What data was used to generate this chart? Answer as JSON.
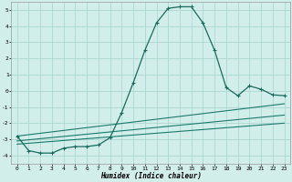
{
  "title": "",
  "xlabel": "Humidex (Indice chaleur)",
  "ylabel": "",
  "xlim": [
    -0.5,
    23.5
  ],
  "ylim": [
    -4.5,
    5.5
  ],
  "xticks": [
    0,
    1,
    2,
    3,
    4,
    5,
    6,
    7,
    8,
    9,
    10,
    11,
    12,
    13,
    14,
    15,
    16,
    17,
    18,
    19,
    20,
    21,
    22,
    23
  ],
  "yticks": [
    -4,
    -3,
    -2,
    -1,
    0,
    1,
    2,
    3,
    4,
    5
  ],
  "bg_color": "#d2eeea",
  "grid_color": "#aed8d2",
  "line_color": "#1a6b5e",
  "trend_color1": "#1a7a6a",
  "trend_color2": "#1a7a6a",
  "trend_color3": "#1a7a6a",
  "series1_x": [
    0,
    1,
    2,
    3,
    4,
    5,
    6,
    7,
    8,
    9,
    10,
    11,
    12,
    13,
    14,
    15,
    16,
    17,
    18,
    19,
    20,
    21,
    22,
    23
  ],
  "series1_y": [
    -2.8,
    -3.7,
    -3.85,
    -3.85,
    -3.55,
    -3.45,
    -3.45,
    -3.35,
    -2.9,
    -1.35,
    0.5,
    2.5,
    4.2,
    5.1,
    5.2,
    5.2,
    4.2,
    2.5,
    0.2,
    -0.3,
    0.3,
    0.1,
    -0.25,
    -0.3
  ],
  "trend1_x": [
    0,
    23
  ],
  "trend1_y": [
    -2.8,
    -0.8
  ],
  "trend2_x": [
    0,
    23
  ],
  "trend2_y": [
    -3.1,
    -1.5
  ],
  "trend3_x": [
    0,
    23
  ],
  "trend3_y": [
    -3.3,
    -2.0
  ]
}
